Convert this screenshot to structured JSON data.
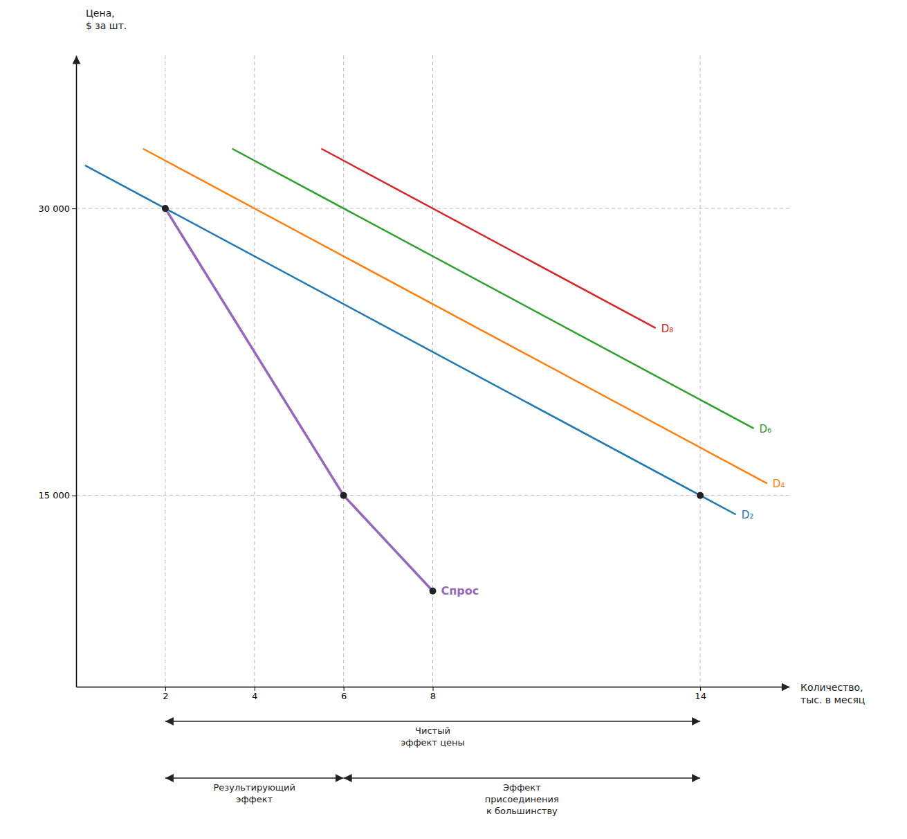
{
  "chart_data": {
    "type": "line",
    "xlabel": "Количество,\nтыс. в месяц",
    "ylabel": "Цена,\n$ за шт.",
    "xlim": [
      0,
      16
    ],
    "ylim": [
      5000,
      38000
    ],
    "xticks": [
      2,
      4,
      6,
      8,
      14
    ],
    "yticks": [
      {
        "value": 15000,
        "label": "15 000"
      },
      {
        "value": 30000,
        "label": "30 000"
      }
    ],
    "grid": true,
    "series": [
      {
        "name": "D₂",
        "x": [
          0.2,
          14.8
        ],
        "values": [
          32250,
          14000
        ]
      },
      {
        "name": "D₄",
        "x": [
          1.5,
          15.5
        ],
        "values": [
          33125,
          15625
        ]
      },
      {
        "name": "D₆",
        "x": [
          3.5,
          15.2
        ],
        "values": [
          33125,
          18500
        ]
      },
      {
        "name": "D₈",
        "x": [
          5.5,
          13.0
        ],
        "values": [
          33125,
          23750
        ]
      },
      {
        "name": "Спрос",
        "x": [
          2,
          6,
          8
        ],
        "values": [
          30000,
          15000,
          10000
        ]
      }
    ],
    "points": {
      "x": [
        2,
        6,
        14,
        8
      ],
      "y": [
        30000,
        15000,
        15000,
        10000
      ]
    },
    "annotations": [
      {
        "text": "Чистый\nэффект цены",
        "x": [
          2,
          14
        ]
      },
      {
        "text": "Результирующий\nэффект",
        "x": [
          2,
          6
        ]
      },
      {
        "text": "Эффект\nприсоединения\nк большинству",
        "x": [
          6,
          14
        ]
      }
    ]
  }
}
